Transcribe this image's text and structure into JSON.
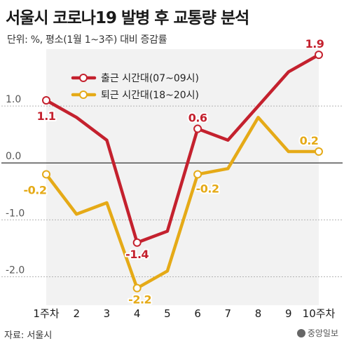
{
  "header": {
    "title": "서울시 코로나19 발병 후 교통량 분석",
    "subtitle": "단위: %, 평소(1월 1~3주) 대비 증감률"
  },
  "footer": {
    "source": "자료: 서울시",
    "logo_text": "중앙일보"
  },
  "colors": {
    "commute": "#c4212e",
    "return": "#e5aa17",
    "area_fill": "#f2f2f2",
    "grid": "#b3b3b3",
    "zero_line": "#333333"
  },
  "chart_data": {
    "type": "line",
    "title": "서울시 코로나19 발병 후 교통량 분석",
    "subtitle": "단위: %, 평소(1월 1~3주) 대비 증감률",
    "categories": [
      "1주차",
      "2",
      "3",
      "4",
      "5",
      "6",
      "7",
      "8",
      "9",
      "10주차"
    ],
    "ylim": [
      -2.5,
      2.0
    ],
    "yticks": [
      1.0,
      0.0,
      -1.0,
      -2.0
    ],
    "ytick_labels": [
      "1.0",
      "0.0",
      "-1.0",
      "-2.0"
    ],
    "grid": true,
    "legend_position": "top-left",
    "series": [
      {
        "name": "출근 시간대(07~09시)",
        "values": [
          1.1,
          0.8,
          0.4,
          -1.4,
          -1.2,
          0.6,
          0.4,
          1.0,
          1.6,
          1.9
        ],
        "labels": [
          {
            "index": 0,
            "text": "1.1"
          },
          {
            "index": 3,
            "text": "-1.4"
          },
          {
            "index": 5,
            "text": "0.6"
          },
          {
            "index": 9,
            "text": "1.9"
          }
        ]
      },
      {
        "name": "퇴근 시간대(18~20시)",
        "values": [
          -0.2,
          -0.9,
          -0.7,
          -2.2,
          -1.9,
          -0.2,
          -0.1,
          0.8,
          0.2,
          0.2
        ],
        "labels": [
          {
            "index": 0,
            "text": "-0.2"
          },
          {
            "index": 3,
            "text": "-2.2"
          },
          {
            "index": 5,
            "text": "-0.2"
          },
          {
            "index": 9,
            "text": "0.2"
          }
        ]
      }
    ]
  }
}
